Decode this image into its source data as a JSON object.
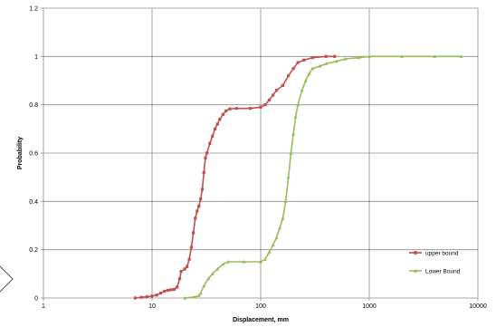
{
  "chart_data": {
    "type": "scatter",
    "title": "",
    "xlabel": "Displacement, mm",
    "ylabel": "Probability",
    "xscale": "log",
    "xlim": [
      1,
      10000
    ],
    "ylim": [
      0,
      1.2
    ],
    "xticks": [
      "1",
      "10",
      "100",
      "1000",
      "10000"
    ],
    "yticks": [
      "0",
      "0.2",
      "0.4",
      "0.6",
      "0.8",
      "1",
      "1.2"
    ],
    "grid": true,
    "legend_position": "bottom-right",
    "series": [
      {
        "name": "upper bound",
        "color": "#c0504d",
        "marker": "square",
        "points": [
          [
            7,
            0
          ],
          [
            8,
            0.003
          ],
          [
            9,
            0.005
          ],
          [
            10,
            0.008
          ],
          [
            11,
            0.012
          ],
          [
            12,
            0.02
          ],
          [
            13,
            0.028
          ],
          [
            14,
            0.032
          ],
          [
            15,
            0.034
          ],
          [
            16,
            0.036
          ],
          [
            17,
            0.045
          ],
          [
            18,
            0.08
          ],
          [
            18.5,
            0.11
          ],
          [
            20,
            0.12
          ],
          [
            21,
            0.13
          ],
          [
            22,
            0.16
          ],
          [
            23,
            0.21
          ],
          [
            24,
            0.27
          ],
          [
            25,
            0.33
          ],
          [
            26,
            0.36
          ],
          [
            27,
            0.38
          ],
          [
            28,
            0.41
          ],
          [
            29,
            0.45
          ],
          [
            30,
            0.52
          ],
          [
            31,
            0.58
          ],
          [
            32,
            0.6
          ],
          [
            34,
            0.64
          ],
          [
            36,
            0.67
          ],
          [
            38,
            0.7
          ],
          [
            40,
            0.72
          ],
          [
            42,
            0.74
          ],
          [
            45,
            0.76
          ],
          [
            48,
            0.775
          ],
          [
            52,
            0.783
          ],
          [
            60,
            0.785
          ],
          [
            80,
            0.785
          ],
          [
            100,
            0.79
          ],
          [
            110,
            0.8
          ],
          [
            120,
            0.82
          ],
          [
            130,
            0.84
          ],
          [
            140,
            0.86
          ],
          [
            160,
            0.88
          ],
          [
            180,
            0.92
          ],
          [
            200,
            0.95
          ],
          [
            220,
            0.975
          ],
          [
            250,
            0.985
          ],
          [
            300,
            0.995
          ],
          [
            400,
            1.0
          ],
          [
            480,
            1.0
          ]
        ]
      },
      {
        "name": "Lower Bound",
        "color": "#9bbb59",
        "marker": "triangle",
        "points": [
          [
            20,
            0
          ],
          [
            25,
            0.005
          ],
          [
            27,
            0.01
          ],
          [
            28,
            0.02
          ],
          [
            30,
            0.05
          ],
          [
            33,
            0.08
          ],
          [
            36,
            0.1
          ],
          [
            40,
            0.12
          ],
          [
            45,
            0.14
          ],
          [
            50,
            0.15
          ],
          [
            70,
            0.15
          ],
          [
            100,
            0.15
          ],
          [
            110,
            0.16
          ],
          [
            120,
            0.19
          ],
          [
            130,
            0.22
          ],
          [
            140,
            0.25
          ],
          [
            150,
            0.29
          ],
          [
            160,
            0.33
          ],
          [
            170,
            0.4
          ],
          [
            180,
            0.5
          ],
          [
            190,
            0.6
          ],
          [
            200,
            0.68
          ],
          [
            210,
            0.75
          ],
          [
            220,
            0.8
          ],
          [
            240,
            0.86
          ],
          [
            260,
            0.9
          ],
          [
            280,
            0.93
          ],
          [
            300,
            0.95
          ],
          [
            350,
            0.96
          ],
          [
            400,
            0.97
          ],
          [
            500,
            0.98
          ],
          [
            600,
            0.99
          ],
          [
            800,
            0.995
          ],
          [
            1000,
            1.0
          ],
          [
            2000,
            1.0
          ],
          [
            4000,
            1.0
          ],
          [
            7000,
            1.0
          ]
        ]
      }
    ]
  }
}
